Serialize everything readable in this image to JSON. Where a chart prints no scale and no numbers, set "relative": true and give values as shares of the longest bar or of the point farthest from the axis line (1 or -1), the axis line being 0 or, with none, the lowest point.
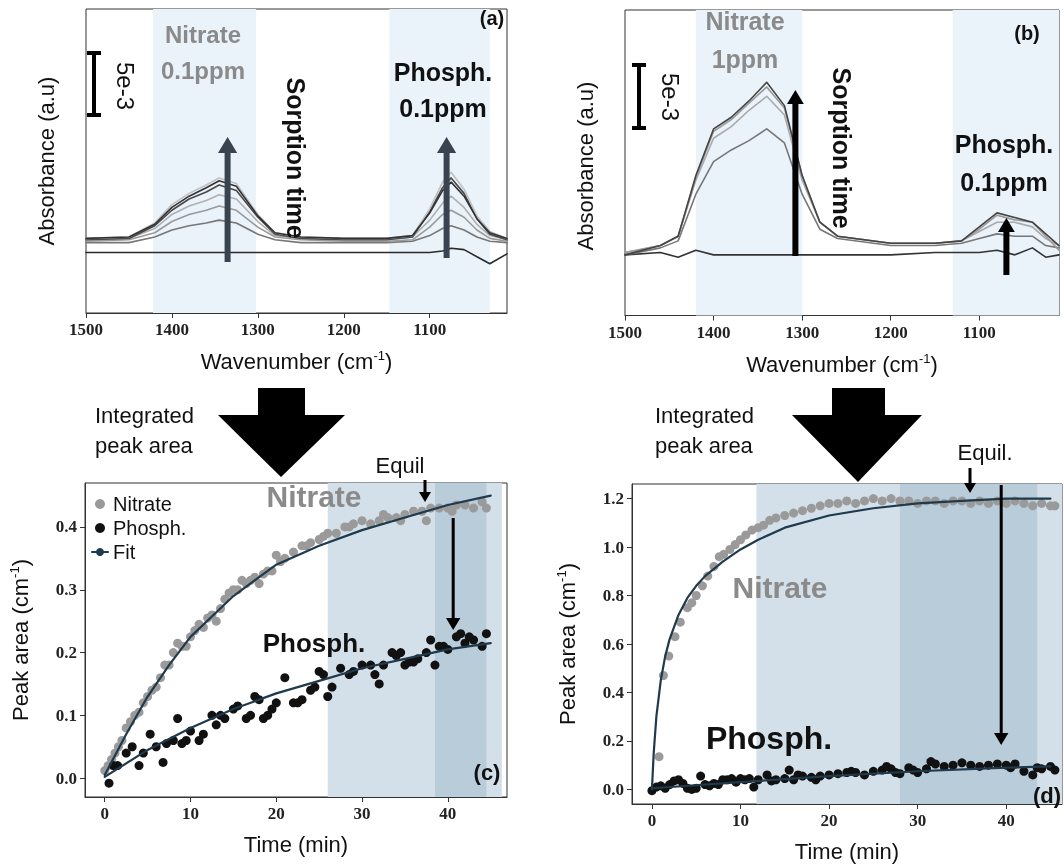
{
  "chart_data": [
    {
      "type": "line",
      "xlabel": "Wavenumber (cm$^{-1}$)",
      "ylabel": "Absorbance (a.u)",
      "relative": true,
      "marker": "none",
      "xlim": [
        1500,
        1010
      ],
      "xticks": [
        1500,
        1400,
        1300,
        1200,
        1100
      ],
      "x": [
        1500,
        1450,
        1420,
        1400,
        1380,
        1360,
        1345,
        1325,
        1300,
        1280,
        1250,
        1200,
        1150,
        1120,
        1100,
        1085,
        1075,
        1060,
        1045,
        1030,
        1010
      ],
      "series": [
        {
          "color": "#2a2a2a",
          "values": [
            0.43,
            0.43,
            0.43,
            0.43,
            0.43,
            0.43,
            0.43,
            0.43,
            0.43,
            0.43,
            0.43,
            0.43,
            0.43,
            0.43,
            0.43,
            0.44,
            0.46,
            0.45,
            0.4,
            0.35,
            0.42
          ]
        },
        {
          "color": "#777777",
          "values": [
            0.5,
            0.5,
            0.54,
            0.59,
            0.62,
            0.64,
            0.66,
            0.64,
            0.56,
            0.52,
            0.5,
            0.5,
            0.5,
            0.51,
            0.55,
            0.6,
            0.62,
            0.59,
            0.54,
            0.51,
            0.5
          ]
        },
        {
          "color": "#9a9a9a",
          "values": [
            0.51,
            0.52,
            0.57,
            0.65,
            0.7,
            0.73,
            0.76,
            0.73,
            0.61,
            0.54,
            0.52,
            0.51,
            0.51,
            0.52,
            0.61,
            0.7,
            0.73,
            0.68,
            0.59,
            0.53,
            0.51
          ]
        },
        {
          "color": "#b0b0b0",
          "values": [
            0.52,
            0.53,
            0.6,
            0.7,
            0.76,
            0.8,
            0.84,
            0.81,
            0.65,
            0.55,
            0.53,
            0.52,
            0.52,
            0.54,
            0.66,
            0.78,
            0.83,
            0.75,
            0.63,
            0.55,
            0.52
          ]
        },
        {
          "color": "#4a4a4a",
          "values": [
            0.52,
            0.53,
            0.62,
            0.73,
            0.81,
            0.86,
            0.91,
            0.87,
            0.68,
            0.56,
            0.53,
            0.52,
            0.52,
            0.54,
            0.72,
            0.89,
            0.96,
            0.85,
            0.67,
            0.56,
            0.52
          ]
        },
        {
          "color": "#c0c0c0",
          "values": [
            0.53,
            0.54,
            0.64,
            0.77,
            0.85,
            0.91,
            0.96,
            0.92,
            0.7,
            0.57,
            0.54,
            0.53,
            0.53,
            0.55,
            0.74,
            0.93,
            1.0,
            0.88,
            0.69,
            0.58,
            0.53
          ]
        },
        {
          "color": "#333333",
          "values": [
            0.53,
            0.54,
            0.63,
            0.75,
            0.83,
            0.89,
            0.94,
            0.9,
            0.69,
            0.57,
            0.54,
            0.53,
            0.53,
            0.55,
            0.71,
            0.87,
            0.93,
            0.83,
            0.67,
            0.57,
            0.53
          ]
        }
      ],
      "bands": [
        {
          "axis": "x",
          "from": 1422,
          "to": 1302,
          "color": "#eaf2fa"
        },
        {
          "axis": "x",
          "from": 1147,
          "to": 1030,
          "color": "#eaf2fa"
        }
      ],
      "annotations": [
        "Nitrate\n0.1ppm",
        "Phosph.\n0.1ppm",
        "Sorption time",
        "5e-3",
        "(a)"
      ]
    },
    {
      "type": "line",
      "xlabel": "Wavenumber (cm$^{-1}$)",
      "ylabel": "Absorbance (a.u)",
      "relative": true,
      "marker": "none",
      "xlim": [
        1500,
        1010
      ],
      "xticks": [
        1500,
        1400,
        1300,
        1200,
        1100
      ],
      "x": [
        1500,
        1460,
        1440,
        1420,
        1400,
        1380,
        1360,
        1340,
        1320,
        1300,
        1280,
        1260,
        1200,
        1150,
        1120,
        1100,
        1080,
        1060,
        1040,
        1025,
        1010
      ],
      "series": [
        {
          "color": "#333333",
          "values": [
            0.26,
            0.27,
            0.25,
            0.28,
            0.26,
            0.26,
            0.26,
            0.26,
            0.26,
            0.26,
            0.26,
            0.26,
            0.26,
            0.27,
            0.27,
            0.27,
            0.28,
            0.26,
            0.29,
            0.25,
            0.26
          ]
        },
        {
          "color": "#777777",
          "values": [
            0.26,
            0.29,
            0.32,
            0.52,
            0.66,
            0.71,
            0.75,
            0.8,
            0.74,
            0.52,
            0.37,
            0.33,
            0.3,
            0.3,
            0.31,
            0.33,
            0.35,
            0.34,
            0.34,
            0.3,
            0.29
          ]
        },
        {
          "color": "#aaaaaa",
          "values": [
            0.27,
            0.3,
            0.34,
            0.58,
            0.76,
            0.81,
            0.88,
            0.94,
            0.86,
            0.58,
            0.4,
            0.34,
            0.31,
            0.31,
            0.32,
            0.36,
            0.4,
            0.4,
            0.38,
            0.33,
            0.3
          ]
        },
        {
          "color": "#999999",
          "values": [
            0.27,
            0.3,
            0.34,
            0.59,
            0.79,
            0.84,
            0.91,
            0.98,
            0.89,
            0.6,
            0.4,
            0.34,
            0.31,
            0.31,
            0.32,
            0.37,
            0.43,
            0.41,
            0.4,
            0.34,
            0.28
          ]
        },
        {
          "color": "#444444",
          "values": [
            0.26,
            0.3,
            0.34,
            0.6,
            0.8,
            0.85,
            0.92,
            1.0,
            0.9,
            0.6,
            0.4,
            0.34,
            0.31,
            0.31,
            0.32,
            0.38,
            0.44,
            0.42,
            0.4,
            0.35,
            0.3
          ]
        }
      ],
      "bands": [
        {
          "axis": "x",
          "from": 1420,
          "to": 1300,
          "color": "#eaf2fa"
        },
        {
          "axis": "x",
          "from": 1130,
          "to": 1010,
          "color": "#eaf2fa"
        }
      ],
      "annotations": [
        "Nitrate\n1ppm",
        "Phosph.\n0.1ppm",
        "Sorption time",
        "5e-3",
        "(b)"
      ]
    },
    {
      "type": "scatter",
      "xlabel": "Time (min)",
      "ylabel": "Peak area (cm$^{-1}$)",
      "marker": "circle",
      "legend": "top left",
      "xlim": [
        -2.3,
        46.9
      ],
      "ylim": [
        -0.03,
        0.47
      ],
      "xticks": [
        0,
        10,
        20,
        30,
        40
      ],
      "yticks": [
        {
          "value": 0,
          "label": "0.0"
        },
        {
          "value": 0.1,
          "label": "0.1"
        },
        {
          "value": 0.2,
          "label": "0.2"
        },
        {
          "value": 0.3,
          "label": "0.3"
        },
        {
          "value": 0.4,
          "label": "0.4"
        }
      ],
      "series": [
        {
          "name": "Nitrate",
          "color": "#9a9a9a",
          "x": [
            0,
            0.4,
            0.8,
            1.2,
            1.6,
            2,
            2.5,
            3,
            3.5,
            4,
            4.5,
            5,
            5.5,
            6,
            6.5,
            7,
            7.5,
            8,
            8.5,
            9,
            9.5,
            10,
            10.5,
            11,
            11.5,
            12,
            12.5,
            13,
            13.5,
            14,
            14.5,
            15,
            15.5,
            16,
            16.5,
            17,
            17.5,
            18,
            18.5,
            19,
            19.5,
            20,
            20.5,
            21,
            22,
            23,
            23.5,
            24,
            25,
            25.5,
            26,
            27,
            28,
            28.5,
            29,
            30,
            31,
            32,
            32.5,
            33,
            34,
            34.5,
            35,
            36,
            37,
            37.5,
            38,
            39,
            40,
            40.5,
            41,
            42,
            43,
            44,
            44.5
          ],
          "values": [
            0.012,
            0.02,
            0.03,
            0.04,
            0.05,
            0.06,
            0.08,
            0.09,
            0.1,
            0.105,
            0.12,
            0.13,
            0.14,
            0.145,
            0.16,
            0.18,
            0.18,
            0.2,
            0.215,
            0.21,
            0.21,
            0.225,
            0.235,
            0.245,
            0.24,
            0.255,
            0.26,
            0.25,
            0.27,
            0.285,
            0.295,
            0.3,
            0.3,
            0.315,
            0.31,
            0.315,
            0.32,
            0.31,
            0.325,
            0.33,
            0.33,
            0.355,
            0.345,
            0.35,
            0.36,
            0.37,
            0.37,
            0.375,
            0.38,
            0.385,
            0.39,
            0.39,
            0.4,
            0.4,
            0.405,
            0.41,
            0.405,
            0.41,
            0.42,
            0.415,
            0.415,
            0.41,
            0.42,
            0.425,
            0.425,
            0.41,
            0.43,
            0.43,
            0.43,
            0.425,
            0.435,
            0.435,
            0.43,
            0.44,
            0.43
          ]
        },
        {
          "name": "Phosph.",
          "color": "#111111",
          "x": [
            0.5,
            1,
            1.5,
            2.5,
            3.2,
            4,
            4.5,
            5.3,
            6,
            6.8,
            7.2,
            8,
            8.5,
            9,
            9.5,
            10,
            11,
            11.5,
            12.5,
            13,
            13.5,
            14,
            15,
            15.5,
            16.5,
            17,
            17.5,
            18,
            18.5,
            19,
            19.5,
            20,
            21,
            22,
            22.5,
            23,
            24,
            24.5,
            25,
            25.5,
            26,
            26.5,
            27.5,
            28.5,
            29,
            30,
            31,
            31.5,
            32,
            32.5,
            33.5,
            34,
            34.5,
            35,
            35.5,
            36,
            36.5,
            37.5,
            38,
            38.5,
            39,
            39.5,
            40,
            41,
            41.5,
            42,
            42.5,
            43,
            44,
            44.5
          ],
          "values": [
            -0.008,
            0.02,
            0.02,
            0.04,
            0.05,
            0.02,
            0.04,
            0.07,
            0.05,
            0.025,
            0.055,
            0.06,
            0.095,
            0.055,
            0.06,
            0.075,
            0.06,
            0.07,
            0.1,
            0.085,
            0.1,
            0.095,
            0.11,
            0.115,
            0.095,
            0.1,
            0.13,
            0.125,
            0.095,
            0.1,
            0.11,
            0.12,
            0.16,
            0.12,
            0.12,
            0.125,
            0.14,
            0.145,
            0.17,
            0.165,
            0.13,
            0.145,
            0.175,
            0.165,
            0.17,
            0.18,
            0.18,
            0.165,
            0.15,
            0.18,
            0.2,
            0.195,
            0.2,
            0.18,
            0.185,
            0.185,
            0.19,
            0.2,
            0.22,
            0.18,
            0.21,
            0.21,
            0.205,
            0.225,
            0.23,
            0.215,
            0.225,
            0.22,
            0.21,
            0.23
          ]
        },
        {
          "name": "Fit",
          "type": "line",
          "marker": "none",
          "color": "#1e3a4c",
          "x": [
            0,
            2.5,
            5,
            7.5,
            10,
            15,
            20,
            25,
            30,
            35,
            40,
            45
          ],
          "values": [
            0.005,
            0.07,
            0.13,
            0.18,
            0.225,
            0.29,
            0.34,
            0.37,
            0.395,
            0.415,
            0.435,
            0.45
          ]
        },
        {
          "type": "line",
          "marker": "none",
          "color": "#1e3a4c",
          "x": [
            0,
            5,
            10,
            15,
            20,
            25,
            30,
            35,
            40,
            45
          ],
          "values": [
            0.002,
            0.045,
            0.08,
            0.11,
            0.135,
            0.155,
            0.175,
            0.19,
            0.205,
            0.215
          ]
        }
      ],
      "bands": [
        {
          "axis": "x",
          "from": 26,
          "to": 46.3,
          "color": "#d3e0e9"
        },
        {
          "axis": "x",
          "from": 38.5,
          "to": 44.5,
          "color": "#b9ccd9"
        }
      ],
      "annotations": [
        "Integrated\npeak area",
        "Equil",
        "(c)"
      ]
    },
    {
      "type": "scatter",
      "xlabel": "Time (min)",
      "ylabel": "Peak area (cm$^{-1}$)",
      "marker": "circle",
      "xlim": [
        -2.25,
        46.3
      ],
      "ylim": [
        -0.06,
        1.26
      ],
      "xticks": [
        0,
        10,
        20,
        30,
        40
      ],
      "yticks": [
        {
          "value": 0,
          "label": "0.0"
        },
        {
          "value": 0.2,
          "label": "0.2"
        },
        {
          "value": 0.4,
          "label": "0.4"
        },
        {
          "value": 0.6,
          "label": "0.6"
        },
        {
          "value": 0.8,
          "label": "0.8"
        },
        {
          "value": 1.0,
          "label": "1.0"
        },
        {
          "value": 1.2,
          "label": "1.2"
        }
      ],
      "series": [
        {
          "name": "Nitrate",
          "color": "#9a9a9a",
          "x": [
            0.8,
            1.3,
            1.9,
            2.6,
            3.2,
            4,
            4.5,
            5,
            5.7,
            6.3,
            7,
            7.6,
            8.1,
            8.8,
            9.4,
            10,
            10.6,
            11.3,
            12,
            12.6,
            13.3,
            14,
            15,
            16,
            17,
            18,
            19,
            20,
            21,
            22,
            23,
            24,
            25,
            26,
            27,
            28,
            29,
            30,
            31,
            32,
            33,
            34,
            35,
            36,
            37,
            38,
            39,
            40,
            41,
            42,
            43,
            44,
            45,
            45.5
          ],
          "values": [
            0.135,
            0.47,
            0.55,
            0.63,
            0.69,
            0.75,
            0.77,
            0.8,
            0.84,
            0.88,
            0.92,
            0.96,
            0.97,
            0.99,
            1.01,
            1.03,
            1.05,
            1.07,
            1.08,
            1.09,
            1.11,
            1.12,
            1.13,
            1.14,
            1.15,
            1.16,
            1.17,
            1.18,
            1.18,
            1.19,
            1.18,
            1.19,
            1.2,
            1.19,
            1.2,
            1.19,
            1.19,
            1.18,
            1.19,
            1.19,
            1.18,
            1.19,
            1.19,
            1.18,
            1.19,
            1.18,
            1.19,
            1.18,
            1.19,
            1.18,
            1.17,
            1.18,
            1.17,
            1.17
          ]
        },
        {
          "name": "Phosph.",
          "color": "#111111",
          "x": [
            0,
            0.5,
            1,
            1.5,
            2,
            2.5,
            3,
            3.5,
            4,
            4.5,
            5,
            5.5,
            6,
            6.5,
            7,
            7.5,
            8,
            8.5,
            9,
            9.5,
            10,
            10.5,
            11,
            11.5,
            12,
            13,
            13.5,
            14,
            15,
            15.5,
            16,
            16.5,
            17,
            18,
            18.5,
            19,
            20,
            21,
            22,
            22.5,
            23,
            24,
            25,
            26,
            26.5,
            27,
            27.5,
            28,
            29,
            29.5,
            30,
            31,
            31.5,
            32,
            33,
            34,
            35,
            36,
            37,
            38,
            39,
            40,
            40.5,
            41,
            42,
            43,
            43.5,
            44,
            45,
            45.5
          ],
          "values": [
            -0.005,
            0.01,
            0.015,
            0.005,
            0.02,
            0.035,
            0.04,
            0.025,
            0.005,
            0,
            0.005,
            0.055,
            0.02,
            0.015,
            0.025,
            0.02,
            0.04,
            0.04,
            0.045,
            0.03,
            0.045,
            0.04,
            0.045,
            0.01,
            0.04,
            0.06,
            0.035,
            0.04,
            0.045,
            0.08,
            0.04,
            0.06,
            0.055,
            0.05,
            0.04,
            0.055,
            0.06,
            0.065,
            0.07,
            0.075,
            0.07,
            0.06,
            0.075,
            0.08,
            0.095,
            0.085,
            0.07,
            0.065,
            0.09,
            0.08,
            0.07,
            0.085,
            0.115,
            0.105,
            0.095,
            0.1,
            0.11,
            0.1,
            0.095,
            0.1,
            0.105,
            0.1,
            0.09,
            0.105,
            0.075,
            0.06,
            0.09,
            0.085,
            0.095,
            0.08
          ]
        },
        {
          "type": "line",
          "marker": "none",
          "color": "#1e3a4c",
          "x": [
            0,
            0.2,
            0.5,
            1,
            1.5,
            2,
            3,
            4,
            5,
            6,
            8,
            10,
            12,
            15,
            20,
            25,
            30,
            35,
            40,
            45
          ],
          "values": [
            0,
            0.15,
            0.3,
            0.45,
            0.55,
            0.62,
            0.72,
            0.79,
            0.84,
            0.88,
            0.94,
            0.99,
            1.03,
            1.08,
            1.13,
            1.16,
            1.18,
            1.19,
            1.2,
            1.2
          ]
        },
        {
          "type": "line",
          "marker": "none",
          "color": "#1e3a4c",
          "x": [
            0,
            10,
            20,
            30,
            40,
            45
          ],
          "values": [
            0.005,
            0.03,
            0.055,
            0.075,
            0.09,
            0.095
          ]
        }
      ],
      "bands": [
        {
          "axis": "x",
          "from": 11.8,
          "to": 46.3,
          "color": "#d3e0e9"
        },
        {
          "axis": "x",
          "from": 28,
          "to": 43.5,
          "color": "#b9ccd9"
        }
      ],
      "annotations": [
        "Integrated\npeak area",
        "Equil.",
        "(d)"
      ]
    }
  ]
}
